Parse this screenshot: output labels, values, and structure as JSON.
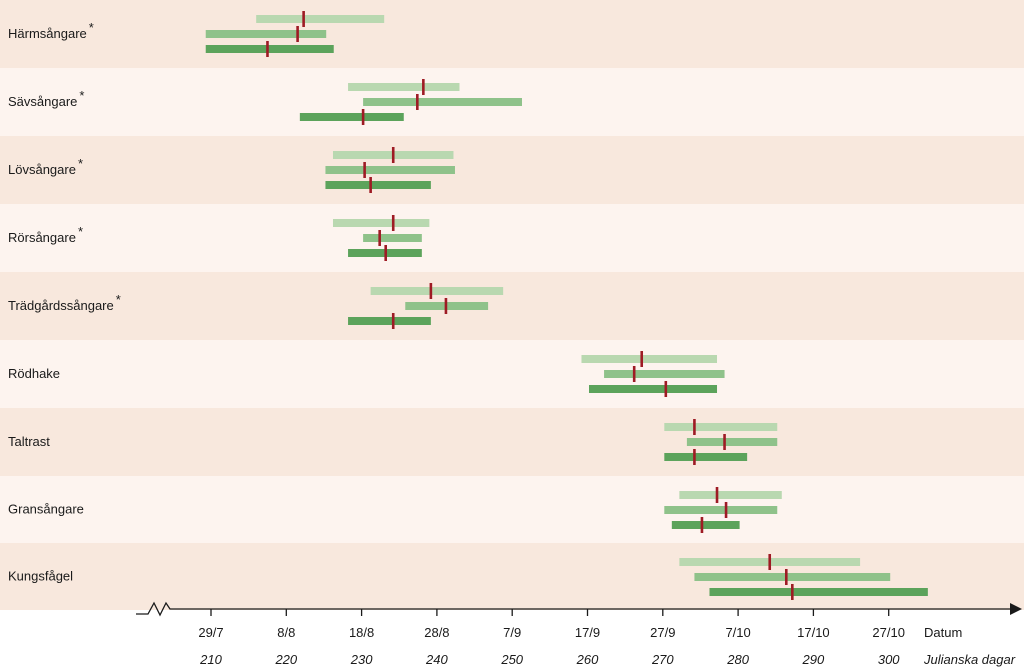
{
  "chart_data": {
    "type": "range-bar",
    "x_axis": {
      "title_date": "Datum",
      "title_day": "Julianska dagar",
      "range": [
        203,
        309
      ],
      "ticks": [
        {
          "day": 210,
          "date": "29/7",
          "label": "210"
        },
        {
          "day": 220,
          "date": "8/8",
          "label": "220"
        },
        {
          "day": 230,
          "date": "18/8",
          "label": "230"
        },
        {
          "day": 240,
          "date": "28/8",
          "label": "240"
        },
        {
          "day": 250,
          "date": "7/9",
          "label": "250"
        },
        {
          "day": 260,
          "date": "17/9",
          "label": "260"
        },
        {
          "day": 270,
          "date": "27/9",
          "label": "270"
        },
        {
          "day": 280,
          "date": "7/10",
          "label": "280"
        },
        {
          "day": 290,
          "date": "17/10",
          "label": "290"
        },
        {
          "day": 300,
          "date": "27/10",
          "label": "300"
        }
      ]
    },
    "colors": [
      "#b9d8b0",
      "#8fc28a",
      "#5ca35b"
    ],
    "marker_color": "#9e1b24",
    "species": [
      {
        "name": "Härmsångare",
        "star": "*",
        "bars": [
          {
            "start": 216,
            "end": 233,
            "median": 222.3
          },
          {
            "start": 209.3,
            "end": 225.3,
            "median": 221.5
          },
          {
            "start": 209.3,
            "end": 226.3,
            "median": 217.5
          }
        ]
      },
      {
        "name": "Sävsångare",
        "star": "*",
        "bars": [
          {
            "start": 228.2,
            "end": 243,
            "median": 238.2
          },
          {
            "start": 230.2,
            "end": 251.3,
            "median": 237.4
          },
          {
            "start": 221.8,
            "end": 235.6,
            "median": 230.2
          }
        ]
      },
      {
        "name": "Lövsångare",
        "star": "*",
        "bars": [
          {
            "start": 226.2,
            "end": 242.2,
            "median": 234.2
          },
          {
            "start": 225.2,
            "end": 242.4,
            "median": 230.4
          },
          {
            "start": 225.2,
            "end": 239.2,
            "median": 231.2
          }
        ]
      },
      {
        "name": "Rörsångare",
        "star": "*",
        "bars": [
          {
            "start": 226.2,
            "end": 239,
            "median": 234.2
          },
          {
            "start": 230.2,
            "end": 238,
            "median": 232.4
          },
          {
            "start": 228.2,
            "end": 238,
            "median": 233.2
          }
        ]
      },
      {
        "name": "Trädgårdssångare",
        "star": "*",
        "bars": [
          {
            "start": 231.2,
            "end": 248.8,
            "median": 239.2
          },
          {
            "start": 235.8,
            "end": 246.8,
            "median": 241.2
          },
          {
            "start": 228.2,
            "end": 239.2,
            "median": 234.2
          }
        ]
      },
      {
        "name": "Rödhake",
        "star": "",
        "bars": [
          {
            "start": 259.2,
            "end": 277.2,
            "median": 267.2
          },
          {
            "start": 262.2,
            "end": 278.2,
            "median": 266.2
          },
          {
            "start": 260.2,
            "end": 277.2,
            "median": 270.4
          }
        ]
      },
      {
        "name": "Taltrast",
        "star": "",
        "bars": [
          {
            "start": 270.2,
            "end": 285.2,
            "median": 274.2
          },
          {
            "start": 273.2,
            "end": 285.2,
            "median": 278.2
          },
          {
            "start": 270.2,
            "end": 281.2,
            "median": 274.2
          }
        ]
      },
      {
        "name": "Gransångare",
        "star": "",
        "bars": [
          {
            "start": 272.2,
            "end": 285.8,
            "median": 277.2
          },
          {
            "start": 270.2,
            "end": 285.2,
            "median": 278.4
          },
          {
            "start": 271.2,
            "end": 280.2,
            "median": 275.2
          }
        ]
      },
      {
        "name": "Kungsfågel",
        "star": "",
        "bars": [
          {
            "start": 272.2,
            "end": 296.2,
            "median": 284.2
          },
          {
            "start": 274.2,
            "end": 300.2,
            "median": 286.4
          },
          {
            "start": 276.2,
            "end": 305.2,
            "median": 287.2
          }
        ]
      }
    ]
  }
}
